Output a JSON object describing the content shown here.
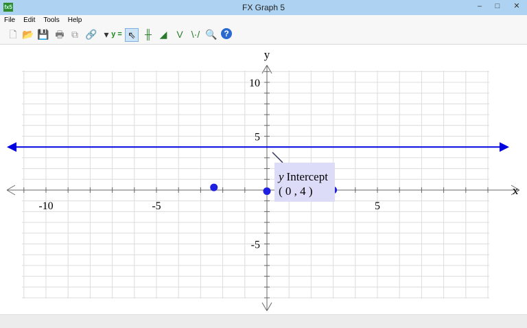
{
  "window": {
    "title": "FX Graph 5",
    "app_icon": "fx5-logo"
  },
  "menu": [
    "File",
    "Edit",
    "Tools",
    "Help"
  ],
  "toolbar": [
    {
      "name": "new-icon",
      "glyph": "🗋"
    },
    {
      "name": "open-folder-icon",
      "glyph": "📂"
    },
    {
      "name": "save-icon",
      "glyph": "💾"
    },
    {
      "name": "print-icon",
      "glyph": "🖶"
    },
    {
      "name": "copy-icon",
      "glyph": "⧉"
    },
    {
      "name": "link-icon",
      "glyph": "🔗"
    },
    {
      "name": "dropdown-arrow-icon",
      "glyph": "▾"
    },
    {
      "name": "equation-icon",
      "glyph": "y ="
    },
    {
      "name": "pointer-icon",
      "glyph": "⇖"
    },
    {
      "name": "table-icon",
      "glyph": "╫"
    },
    {
      "name": "area-icon",
      "glyph": "◢"
    },
    {
      "name": "function-curve-icon",
      "glyph": "V"
    },
    {
      "name": "points-icon",
      "glyph": "\\·/"
    },
    {
      "name": "zoom-icon",
      "glyph": "🔍"
    },
    {
      "name": "help-icon",
      "glyph": "?"
    }
  ],
  "graph": {
    "x_axis_label": "x",
    "y_axis_label": "y",
    "x_ticks": [
      -10,
      -5,
      5
    ],
    "y_ticks": [
      10,
      5,
      -5
    ],
    "xlim": [
      -11,
      10.3
    ],
    "ylim": [
      -10.5,
      11
    ],
    "line": {
      "equation_y": 4,
      "color": "#0000e0"
    },
    "points": [
      {
        "x": -2.4,
        "y": 0.25
      },
      {
        "x": 0,
        "y": -0.1
      },
      {
        "x": 3,
        "y": 0
      }
    ],
    "tooltip": {
      "title_var": "y",
      "title": "Intercept",
      "value": "( 0 , 4 )"
    }
  }
}
